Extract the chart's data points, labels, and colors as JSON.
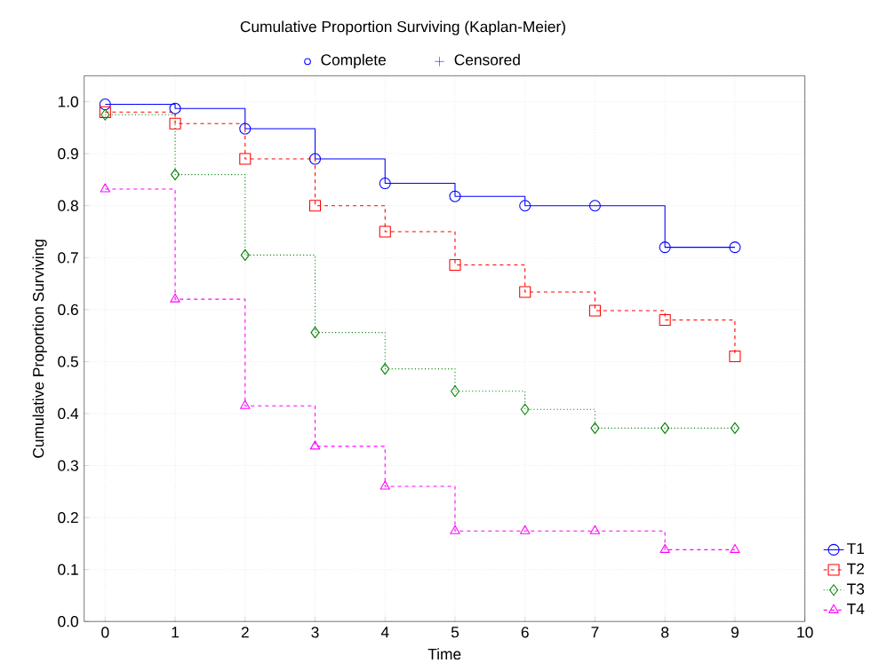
{
  "chart_data": {
    "type": "step",
    "title": "Cumulative Proportion Surviving (Kaplan-Meier)",
    "xlabel": "Time",
    "ylabel": "Cumulative Proportion Surviving",
    "annotations": [
      "Complete",
      "Censored"
    ],
    "x": [
      0,
      1,
      2,
      3,
      4,
      5,
      6,
      7,
      8,
      9
    ],
    "series": [
      {
        "name": "T1",
        "color": "#0000ff",
        "marker": "circle",
        "line_style": "solid",
        "values": [
          0.995,
          0.987,
          0.948,
          0.89,
          0.843,
          0.818,
          0.8,
          0.8,
          0.72,
          0.72
        ]
      },
      {
        "name": "T2",
        "color": "#ff0000",
        "marker": "square",
        "line_style": "dashed",
        "values": [
          0.98,
          0.958,
          0.89,
          0.8,
          0.75,
          0.686,
          0.634,
          0.598,
          0.58,
          0.51
        ]
      },
      {
        "name": "T3",
        "color": "#008000",
        "marker": "diamond",
        "line_style": "dotted",
        "values": [
          0.975,
          0.86,
          0.705,
          0.556,
          0.486,
          0.443,
          0.408,
          0.372,
          0.372,
          0.372
        ]
      },
      {
        "name": "T4",
        "color": "#ff00ff",
        "marker": "triangle",
        "line_style": "dashed",
        "values": [
          0.832,
          0.62,
          0.415,
          0.337,
          0.26,
          0.174,
          0.174,
          0.174,
          0.138,
          0.138
        ]
      }
    ],
    "xlim": [
      -0.3,
      10
    ],
    "xticks": [
      0,
      1,
      2,
      3,
      4,
      5,
      6,
      7,
      8,
      9,
      10
    ],
    "ylim": [
      0,
      1.05
    ],
    "yticks": [
      {
        "value": 0,
        "label": "0.0"
      },
      {
        "value": 0.1,
        "label": "0.1"
      },
      {
        "value": 0.2,
        "label": "0.2"
      },
      {
        "value": 0.3,
        "label": "0.3"
      },
      {
        "value": 0.4,
        "label": "0.4"
      },
      {
        "value": 0.5,
        "label": "0.5"
      },
      {
        "value": 0.6,
        "label": "0.6"
      },
      {
        "value": 0.7,
        "label": "0.7"
      },
      {
        "value": 0.8,
        "label": "0.8"
      },
      {
        "value": 0.9,
        "label": "0.9"
      },
      {
        "value": 1.0,
        "label": "1.0"
      }
    ],
    "grid": true,
    "legend": "bottom right"
  }
}
